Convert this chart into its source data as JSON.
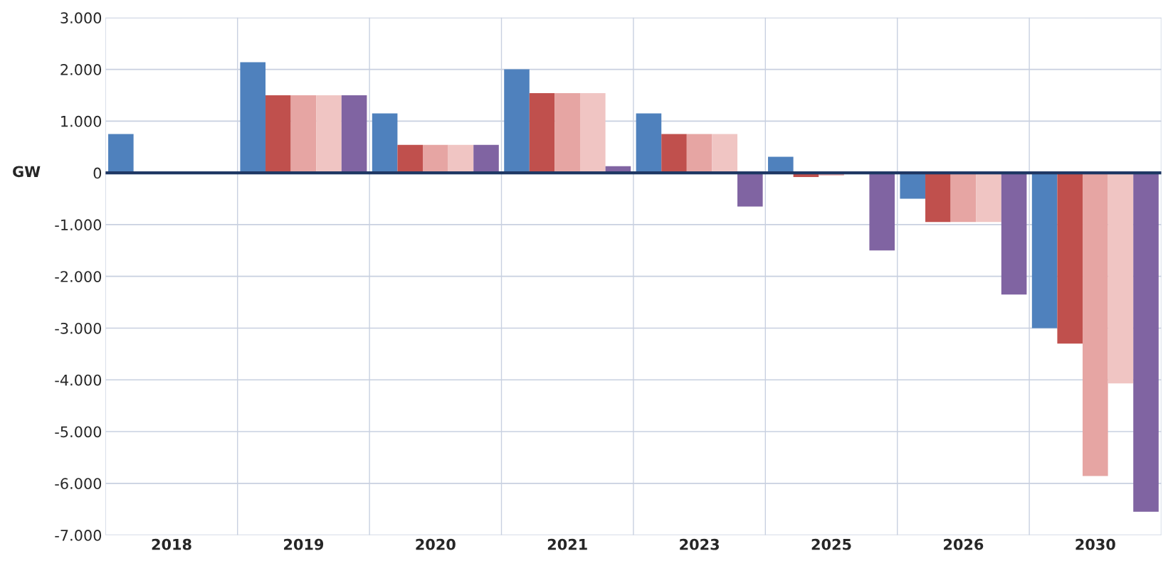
{
  "chart_data": {
    "type": "bar",
    "ylabel": "GW",
    "categories": [
      "2018",
      "2019",
      "2020",
      "2021",
      "2023",
      "2025",
      "2026",
      "2030"
    ],
    "series": [
      {
        "color": "#4f81bd",
        "values": [
          750,
          2140,
          1150,
          2000,
          1150,
          310,
          -500,
          -3000
        ]
      },
      {
        "color": "#c0504d",
        "values": [
          0,
          1500,
          540,
          1540,
          750,
          -80,
          -950,
          -3300
        ]
      },
      {
        "color": "#e6a5a3",
        "values": [
          0,
          1500,
          540,
          1540,
          750,
          -50,
          -950,
          -5860
        ]
      },
      {
        "color": "#f0c5c3",
        "values": [
          0,
          1500,
          540,
          1540,
          750,
          null,
          -950,
          -4070
        ]
      },
      {
        "color": "#8064a2",
        "values": [
          0,
          1500,
          540,
          130,
          -650,
          -1500,
          -2350,
          -6550
        ]
      }
    ],
    "ylim": [
      -7000,
      3000
    ],
    "yticks": [
      {
        "value": 3000,
        "label": "3.000"
      },
      {
        "value": 2000,
        "label": "2.000"
      },
      {
        "value": 1000,
        "label": "1.000"
      },
      0,
      {
        "value": -1000,
        "label": "-1.000"
      },
      {
        "value": -2000,
        "label": "-2.000"
      },
      {
        "value": -3000,
        "label": "-3.000"
      },
      {
        "value": -4000,
        "label": "-4.000"
      },
      {
        "value": -5000,
        "label": "-5.000"
      },
      {
        "value": -6000,
        "label": "-6.000"
      },
      {
        "value": -7000,
        "label": "-7.000"
      }
    ],
    "ref_lines": [
      {
        "axis": "y",
        "value": 0,
        "color": "#1f3864"
      }
    ],
    "grid": true,
    "legend": false
  }
}
